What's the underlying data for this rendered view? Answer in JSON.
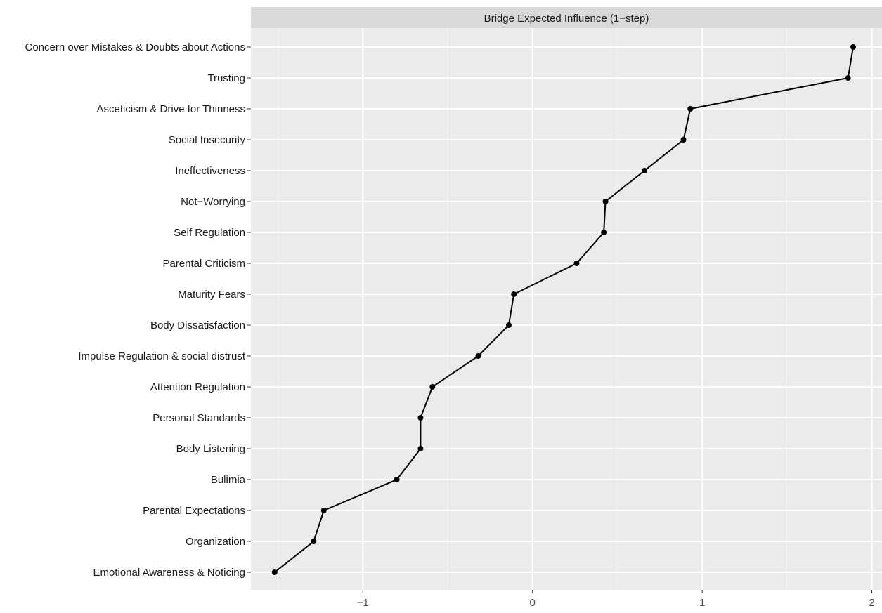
{
  "chart_data": {
    "type": "line",
    "facet_title": "Bridge Expected Influence (1−step)",
    "categories": [
      "Concern over Mistakes & Doubts about Actions",
      "Trusting",
      "Asceticism & Drive for Thinness",
      "Social Insecurity",
      "Ineffectiveness",
      "Not−Worrying",
      "Self Regulation",
      "Parental Criticism",
      "Maturity Fears",
      "Body Dissatisfaction",
      "Impulse Regulation & social distrust",
      "Attention Regulation",
      "Personal Standards",
      "Body Listening",
      "Bulimia",
      "Parental Expectations",
      "Organization",
      "Emotional Awareness & Noticing"
    ],
    "values": [
      1.89,
      1.86,
      0.93,
      0.89,
      0.66,
      0.43,
      0.42,
      0.26,
      -0.11,
      -0.14,
      -0.32,
      -0.59,
      -0.66,
      -0.66,
      -0.8,
      -1.23,
      -1.29,
      -1.52
    ],
    "xlim": [
      -1.66,
      2.06
    ],
    "x_ticks": [
      -1,
      0,
      1,
      2
    ],
    "x_tick_labels": [
      "−1",
      "0",
      "1",
      "2"
    ],
    "xlabel": "",
    "ylabel": "",
    "grid": true,
    "colors": {
      "panel_bg": "#ebebeb",
      "strip_bg": "#d9d9d9",
      "grid_major": "#ffffff",
      "line": "#000000",
      "point": "#000000"
    }
  }
}
